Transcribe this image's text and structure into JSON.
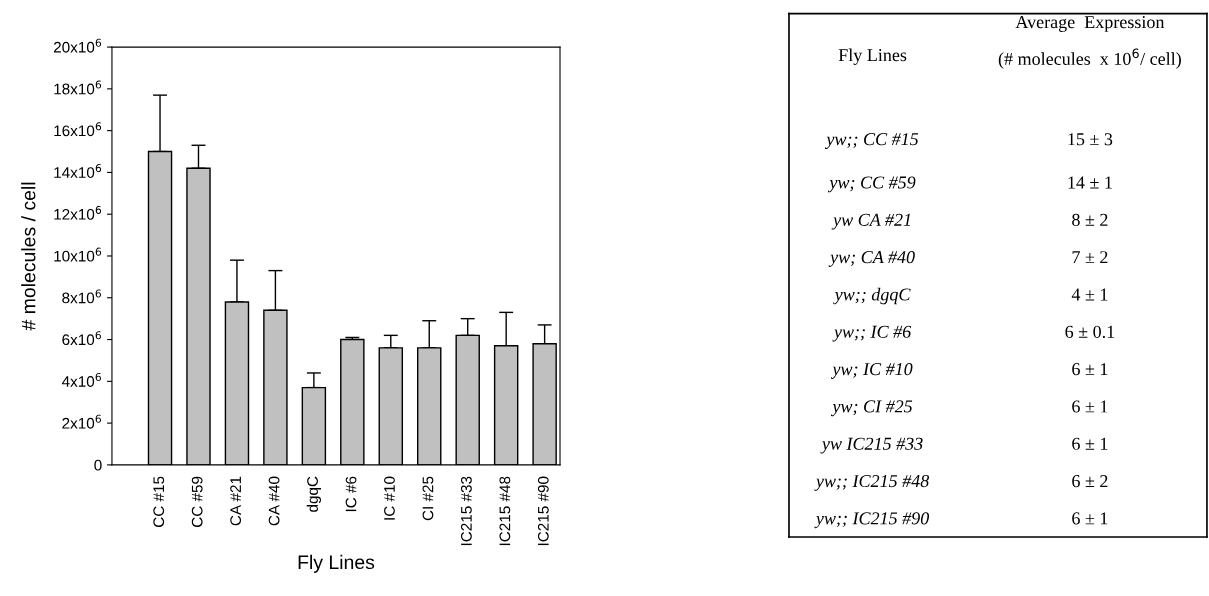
{
  "chart_data": [
    {
      "type": "bar",
      "xlabel": "Fly Lines",
      "ylabel": "# molecules / cell",
      "categories": [
        "CC #15",
        "CC #59",
        "CA #21",
        "CA #40",
        "dgqC",
        "IC #6",
        "IC #10",
        "CI #25",
        "IC215 #33",
        "IC215 #48",
        "IC215 #90"
      ],
      "values": [
        15000000,
        14200000,
        7800000,
        7400000,
        3700000,
        6000000,
        5600000,
        5600000,
        6200000,
        5700000,
        5800000
      ],
      "errors": [
        [
          15000000,
          17700000
        ],
        [
          14200000,
          15300000
        ],
        [
          7800000,
          9800000
        ],
        [
          7400000,
          9300000
        ],
        [
          3700000,
          4400000
        ],
        [
          6000000,
          6100000
        ],
        [
          5600000,
          6200000
        ],
        [
          5600000,
          6900000
        ],
        [
          6200000,
          7000000
        ],
        [
          5700000,
          7300000
        ],
        [
          5800000,
          6700000
        ]
      ],
      "color": "#c0c0c0",
      "ylim": [
        0,
        20000000
      ],
      "yticks": [
        0,
        {
          "value": 2000000,
          "label": "2x10$^{6}$"
        },
        {
          "value": 4000000,
          "label": "4x10$^{6}$"
        },
        {
          "value": 6000000,
          "label": "6x10$^{6}$"
        },
        {
          "value": 8000000,
          "label": "8x10$^{6}$"
        },
        {
          "value": 10000000,
          "label": "10x10$^{6}$"
        },
        {
          "value": 12000000,
          "label": "12x10$^{6}$"
        },
        {
          "value": 14000000,
          "label": "14x10$^{6}$"
        },
        {
          "value": 16000000,
          "label": "16x10$^{6}$"
        },
        {
          "value": 18000000,
          "label": "18x10$^{6}$"
        },
        {
          "value": 20000000,
          "label": "20x10$^{6}$"
        }
      ],
      "grid": false,
      "legend": false
    },
    {
      "type": "other",
      "annotations": [
        "Fly Lines",
        "Average  Expression",
        "(# molecules  x 10$^{6}$/ cell)"
      ],
      "categories": [
        "yw;; CC #15",
        "yw; CC #59",
        "yw CA #21",
        "yw; CA #40",
        "yw;; dgqC",
        "yw;; IC #6",
        "yw; IC #10",
        "yw; CI #25",
        "yw IC215 #33",
        "yw;; IC215 #48",
        "yw;; IC215 #90"
      ],
      "value_labels": [
        "15 ± 3",
        "14 ± 1",
        "8 ± 2",
        "7 ± 2",
        "4 ± 1",
        "6 ± 0.1",
        "6 ± 1",
        "6 ± 1",
        "6 ± 1",
        "6 ± 2",
        "6 ± 1"
      ]
    }
  ]
}
